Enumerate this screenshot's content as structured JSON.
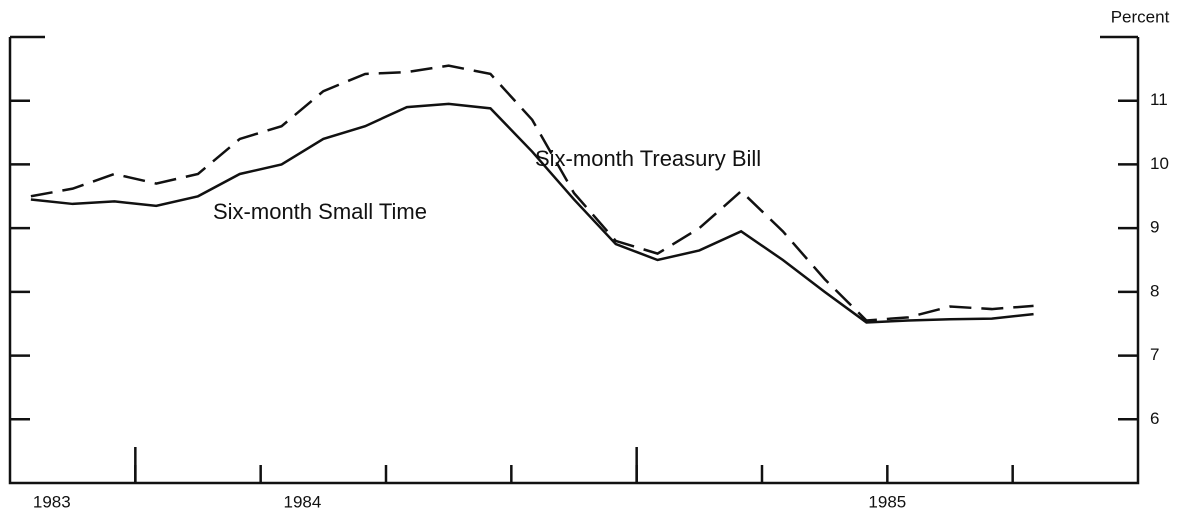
{
  "chart_data": {
    "type": "line",
    "y_axis_label": "Percent",
    "x": [
      0.5,
      1.5,
      2.5,
      3.5,
      4.5,
      5.5,
      6.5,
      7.5,
      8.5,
      9.5,
      10.5,
      11.5,
      12.5,
      13.5,
      14.5,
      15.5,
      16.5,
      17.5,
      18.5,
      19.5,
      20.5,
      21.5,
      22.5,
      23.5,
      24.5
    ],
    "xlim": [
      0,
      27
    ],
    "xticks": [
      3,
      6,
      9,
      12,
      15,
      18,
      21,
      24
    ],
    "x_major_ticks": [
      3,
      15
    ],
    "x_labels": [
      {
        "value": 1,
        "label": "1983"
      },
      {
        "value": 7,
        "label": "1984"
      },
      {
        "value": 21,
        "label": "1985"
      }
    ],
    "ylim": [
      5,
      12
    ],
    "yticks": [
      6,
      7,
      8,
      9,
      10,
      11
    ],
    "series": [
      {
        "name": "Six-month Treasury Bill",
        "color": "#111111",
        "dashed": true,
        "values": [
          9.5,
          9.62,
          9.85,
          9.7,
          9.85,
          10.4,
          10.6,
          11.15,
          11.42,
          11.45,
          11.55,
          11.42,
          10.7,
          9.55,
          8.8,
          8.6,
          9.0,
          9.58,
          8.95,
          8.2,
          7.55,
          7.6,
          7.77,
          7.73,
          7.78
        ]
      },
      {
        "name": "Six-month Small Time",
        "color": "#111111",
        "dashed": false,
        "values": [
          9.45,
          9.38,
          9.42,
          9.35,
          9.5,
          9.85,
          10.0,
          10.4,
          10.6,
          10.9,
          10.95,
          10.88,
          10.2,
          9.45,
          8.75,
          8.5,
          8.65,
          8.95,
          8.5,
          8.0,
          7.52,
          7.55,
          7.57,
          7.58,
          7.65
        ]
      }
    ]
  }
}
